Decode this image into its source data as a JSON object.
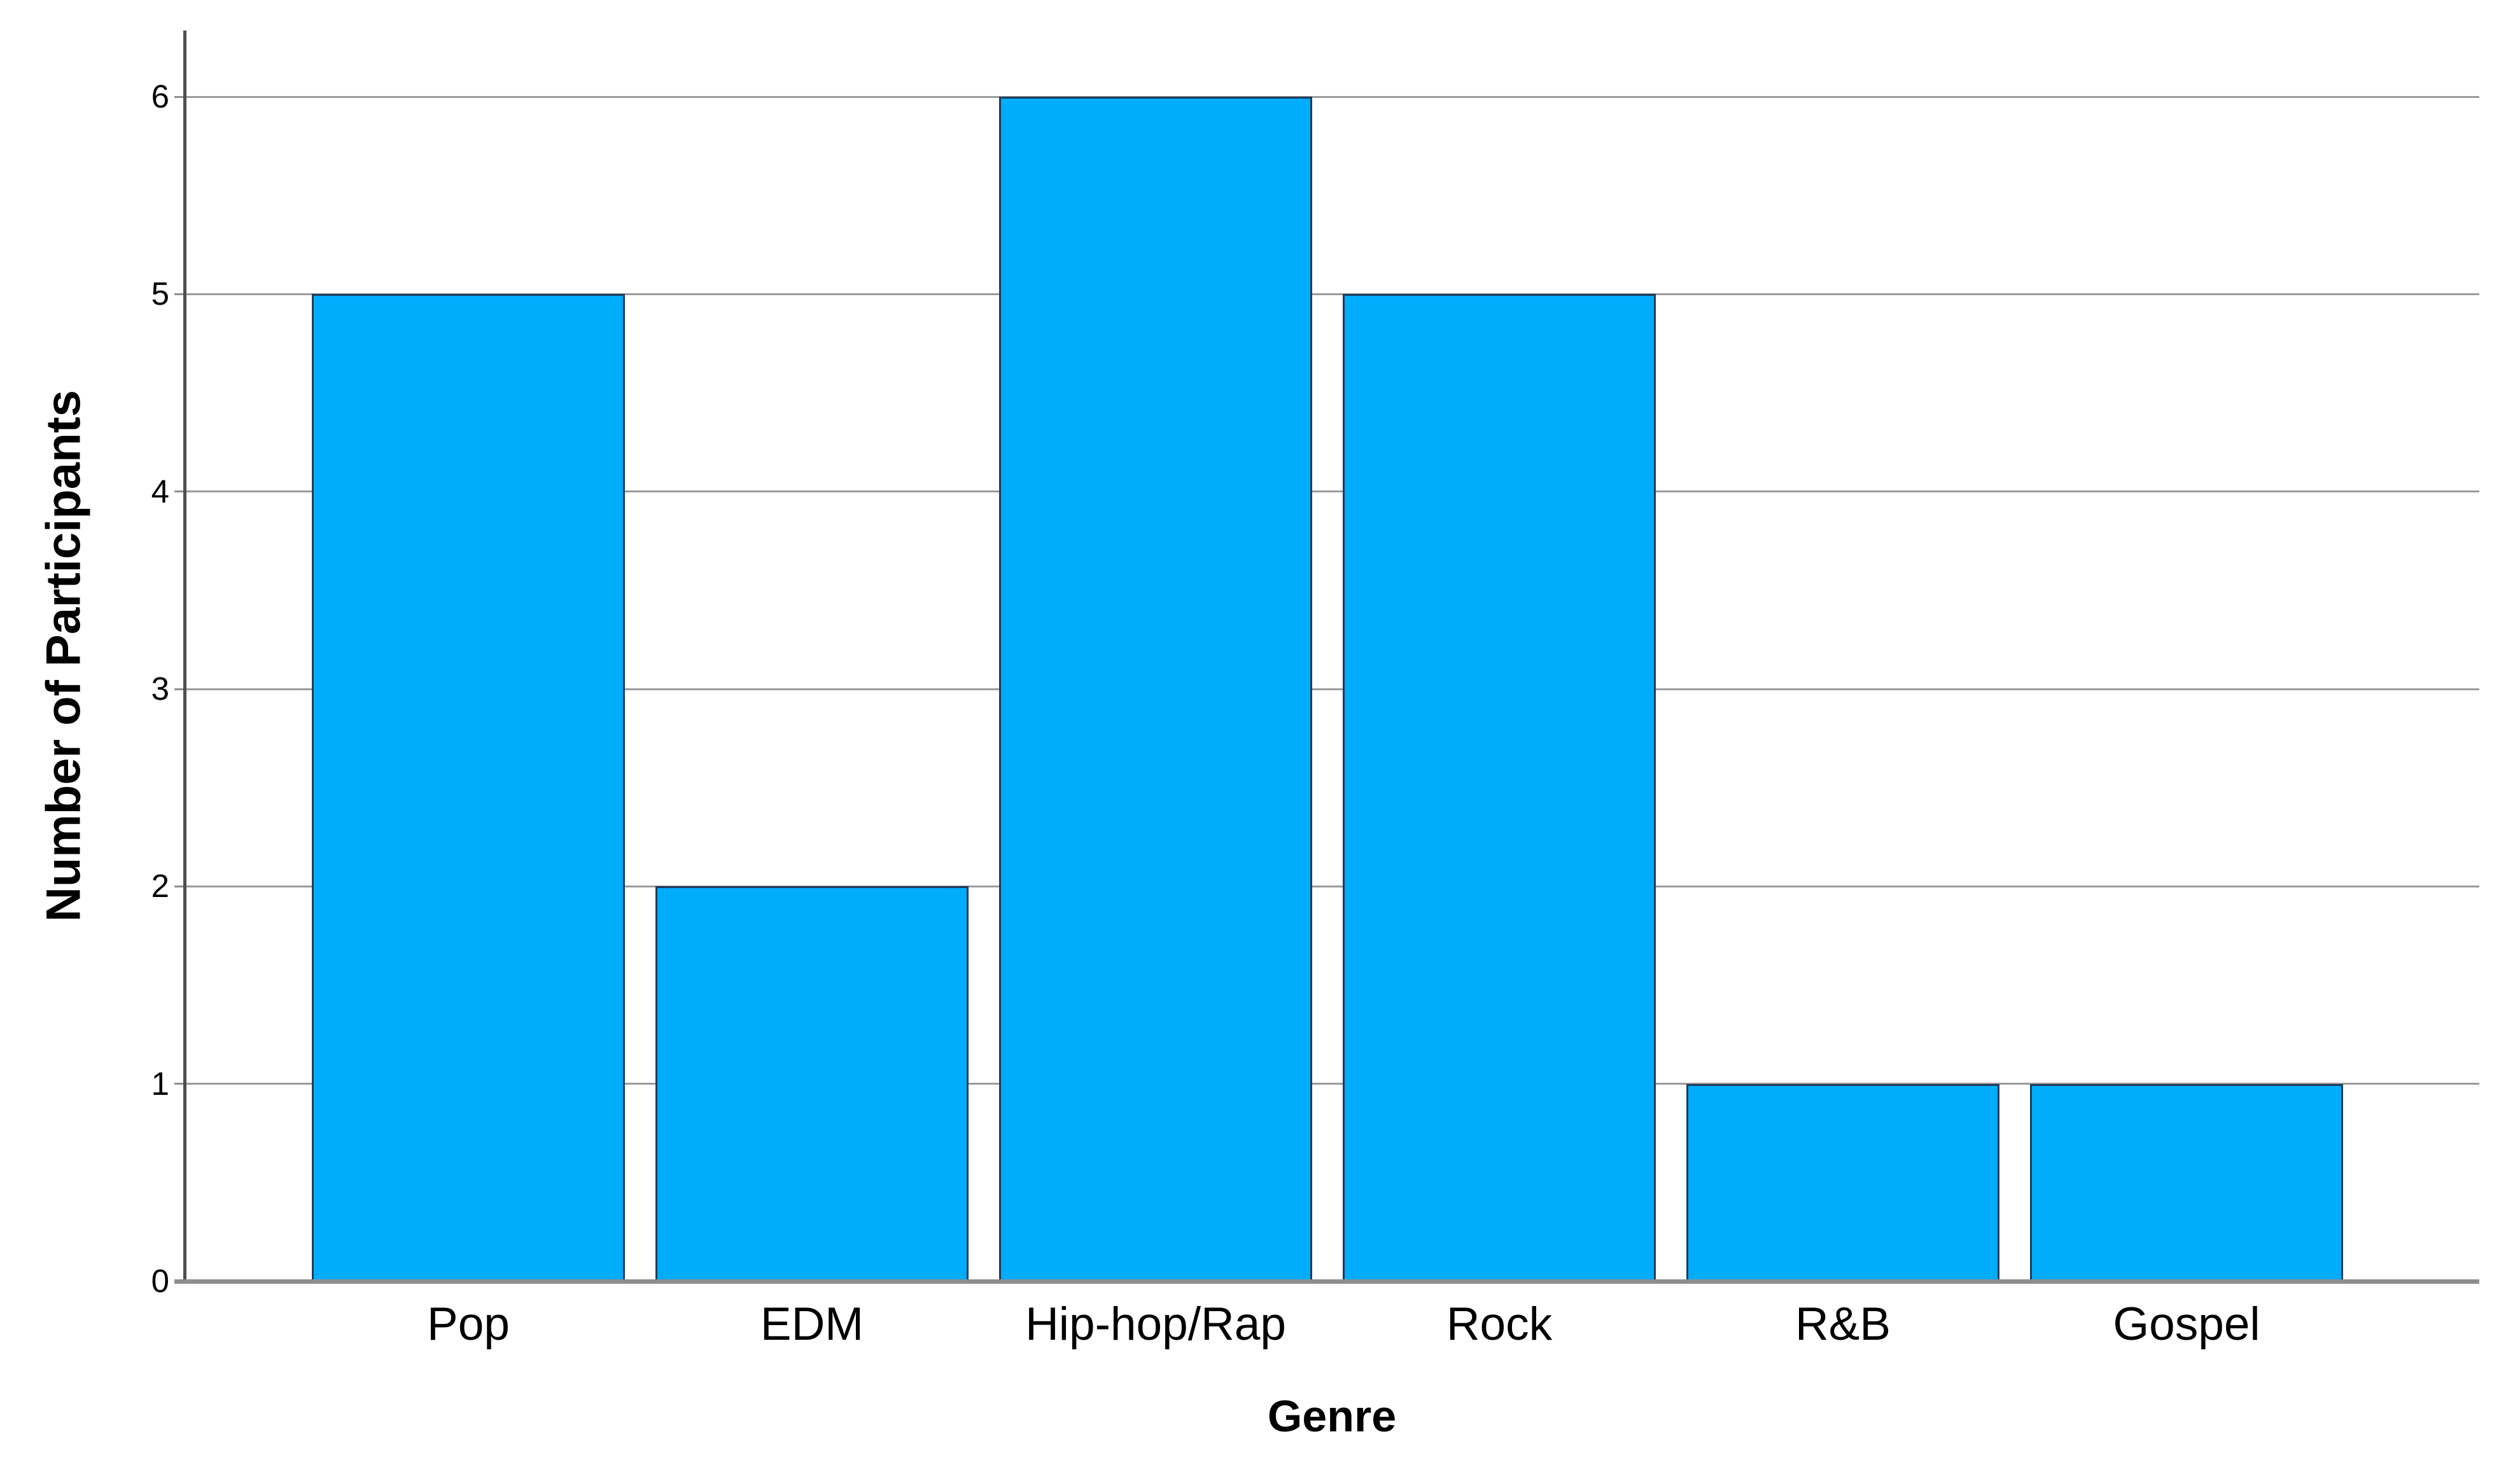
{
  "chart_data": {
    "type": "bar",
    "categories": [
      "Pop",
      "EDM",
      "Hip-hop/Rap",
      "Rock",
      "R&B",
      "Gospel"
    ],
    "values": [
      5,
      2,
      6,
      5,
      1,
      1
    ],
    "title": "",
    "xlabel": "Genre",
    "ylabel": "Number of Participants",
    "ylim": [
      0,
      6
    ],
    "yticks": [
      0,
      1,
      2,
      3,
      4,
      5,
      6
    ],
    "grid": "horizontal-only",
    "legend": "none",
    "colors": {
      "bar_fill": "#00acfc",
      "bar_border": "#1e3c5a",
      "gridline": "#9b9b9b",
      "axis_line": "#4f4f4f",
      "baseline": "#8e8e8e",
      "text": "#000000",
      "background": "#ffffff"
    }
  }
}
